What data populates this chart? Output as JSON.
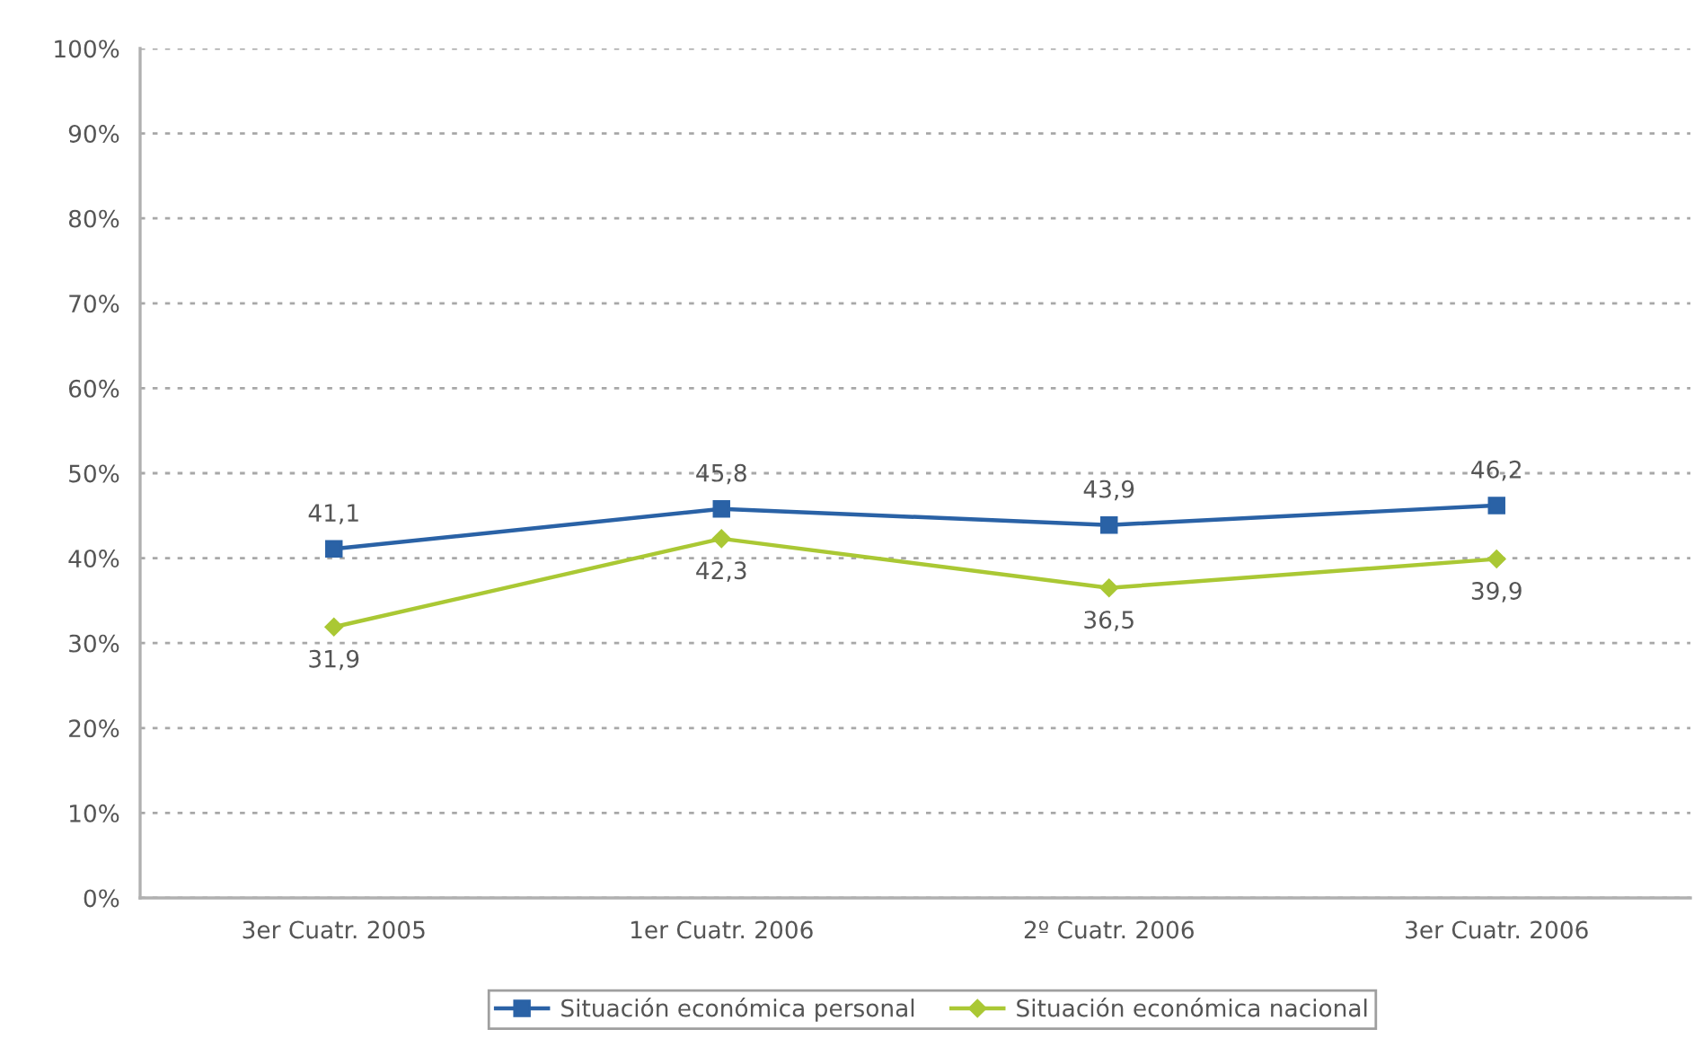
{
  "chart_data": {
    "type": "line",
    "categories": [
      "3er Cuatr. 2005",
      "1er Cuatr. 2006",
      "2º Cuatr. 2006",
      "3er Cuatr. 2006"
    ],
    "series": [
      {
        "name": "Situación económica personal",
        "color": "#2a62a6",
        "marker": "square",
        "values": [
          41.1,
          45.8,
          43.9,
          46.2
        ],
        "value_labels": [
          "41,1",
          "45,8",
          "43,9",
          "46,2"
        ]
      },
      {
        "name": "Situación económica nacional",
        "color": "#aac834",
        "marker": "diamond",
        "values": [
          31.9,
          42.3,
          36.5,
          39.9
        ],
        "value_labels": [
          "31,9",
          "42,3",
          "36,5",
          "39,9"
        ]
      }
    ],
    "ylim": [
      0,
      100
    ],
    "yticks": [
      {
        "value": 0,
        "label": "0%"
      },
      {
        "value": 10,
        "label": "10%"
      },
      {
        "value": 20,
        "label": "20%"
      },
      {
        "value": 30,
        "label": "30%"
      },
      {
        "value": 40,
        "label": "40%"
      },
      {
        "value": 50,
        "label": "50%"
      },
      {
        "value": 60,
        "label": "60%"
      },
      {
        "value": 70,
        "label": "70%"
      },
      {
        "value": 80,
        "label": "80%"
      },
      {
        "value": 90,
        "label": "90%"
      },
      {
        "value": 100,
        "label": "100%"
      }
    ],
    "grid": "y",
    "legend": "bottom",
    "line_style": "solid"
  }
}
